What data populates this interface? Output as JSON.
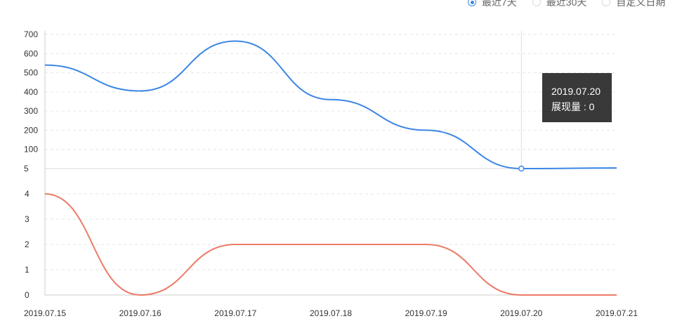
{
  "range_options": [
    {
      "label": "最近7天",
      "selected": true
    },
    {
      "label": "最近30天",
      "selected": false
    },
    {
      "label": "自定义日期",
      "selected": false
    }
  ],
  "tooltip": {
    "date": "2019.07.20",
    "label": "展现量",
    "value": "0"
  },
  "chart_data": {
    "type": "line",
    "x": [
      "2019.07.15",
      "2019.07.16",
      "2019.07.17",
      "2019.07.18",
      "2019.07.19",
      "2019.07.20",
      "2019.07.21"
    ],
    "upper_axis": {
      "ticks": [
        "5",
        "100",
        "200",
        "300",
        "400",
        "500",
        "600",
        "700"
      ],
      "tick_values": [
        5,
        100,
        200,
        300,
        400,
        500,
        600,
        700
      ]
    },
    "lower_axis": {
      "ticks": [
        "0",
        "1",
        "2",
        "3",
        "4"
      ],
      "tick_values": [
        0,
        1,
        2,
        3,
        4
      ]
    },
    "grid": true,
    "series": [
      {
        "color": "#3b86e6",
        "axis": "upper",
        "values": [
          540,
          405,
          665,
          360,
          200,
          5,
          8
        ]
      },
      {
        "color": "#ec7a66",
        "axis": "lower",
        "values": [
          4,
          0,
          2,
          2,
          2,
          0,
          0
        ]
      }
    ]
  }
}
